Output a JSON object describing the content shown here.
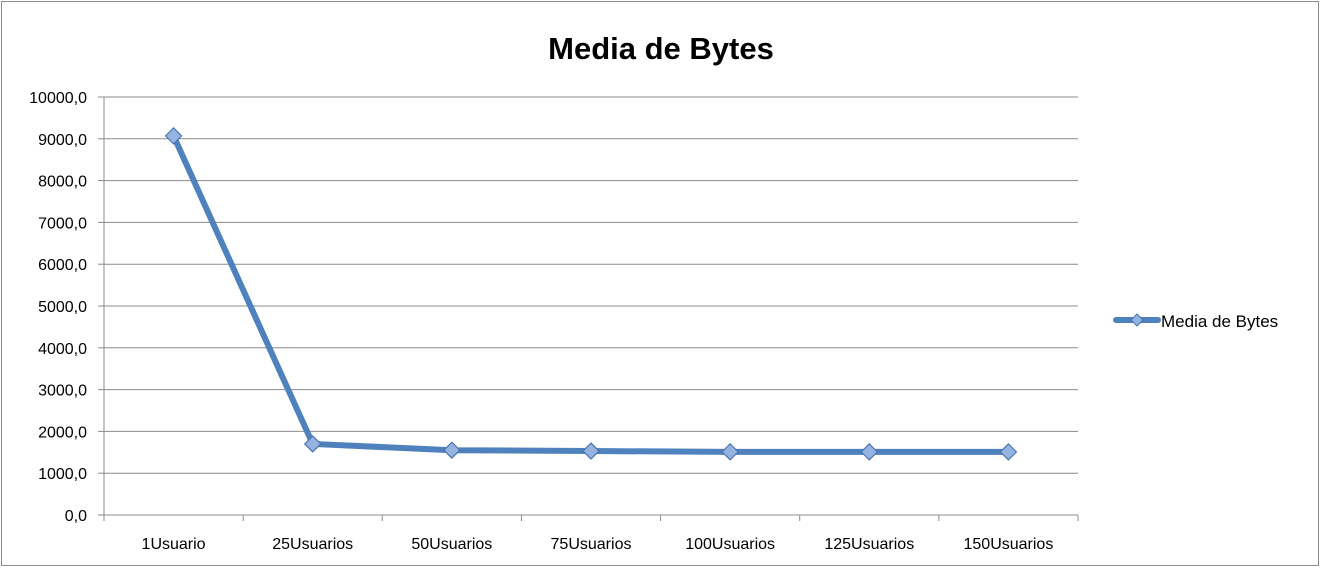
{
  "chart_data": {
    "type": "line",
    "title": "Media de Bytes",
    "xlabel": "",
    "ylabel": "",
    "categories": [
      "1Usuario",
      "25Usuarios",
      "50Usuarios",
      "75Usuarios",
      "100Usuarios",
      "125Usuarios",
      "150Usuarios"
    ],
    "series": [
      {
        "name": "Media de Bytes",
        "values": [
          9070,
          1700,
          1550,
          1530,
          1510,
          1510,
          1510
        ],
        "color": "#4f81bd"
      }
    ],
    "ylim": [
      0,
      10000
    ],
    "yticks": [
      0,
      1000,
      2000,
      3000,
      4000,
      5000,
      6000,
      7000,
      8000,
      9000,
      10000
    ],
    "ytick_labels": [
      "0,0",
      "1000,0",
      "2000,0",
      "3000,0",
      "4000,0",
      "5000,0",
      "6000,0",
      "7000,0",
      "8000,0",
      "9000,0",
      "10000,0"
    ],
    "grid": true,
    "legend_position": "right",
    "marker": "diamond"
  }
}
